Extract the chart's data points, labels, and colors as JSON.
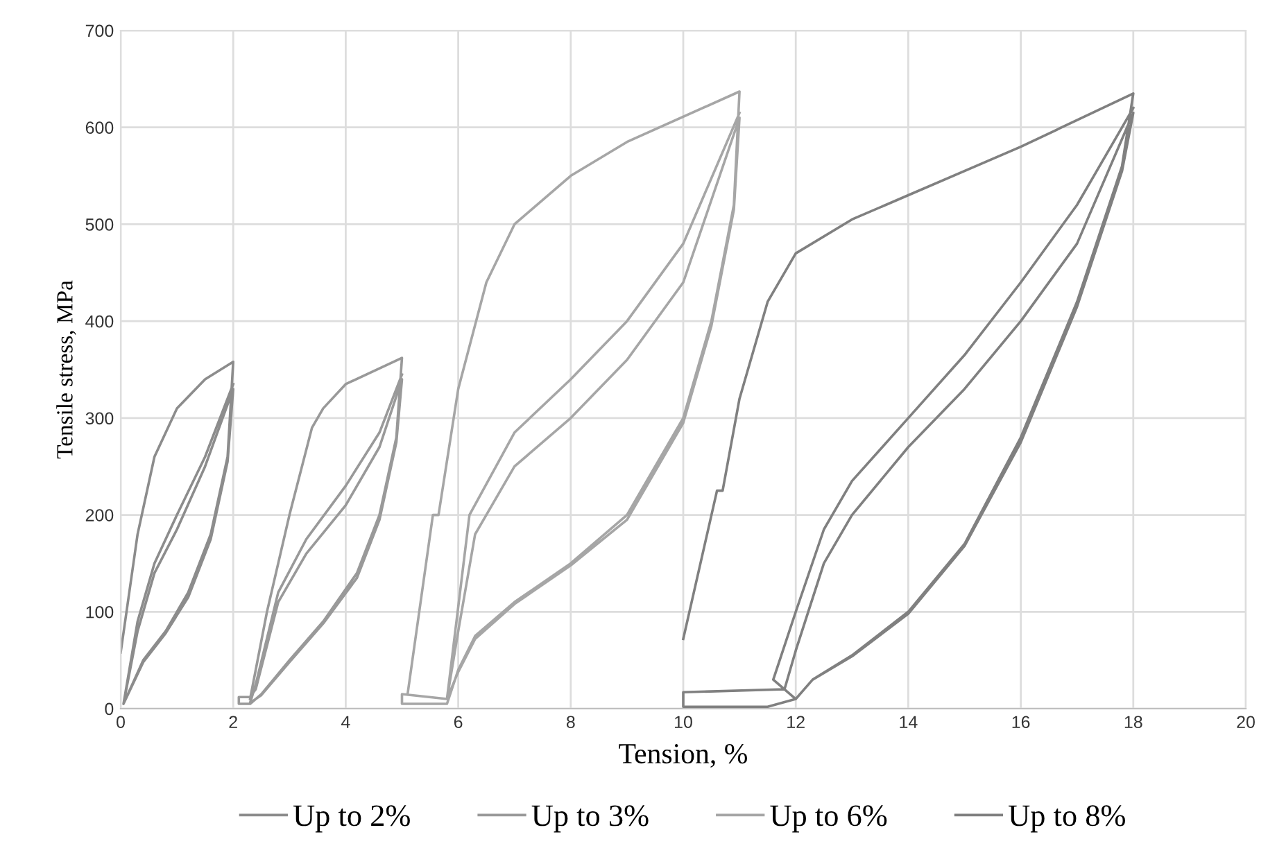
{
  "chart_data": {
    "type": "line",
    "xlabel": "Tension, %",
    "ylabel": "Tensile stress, MPa",
    "xlim": [
      0,
      20
    ],
    "ylim": [
      0,
      700
    ],
    "xticks": [
      0,
      2,
      4,
      6,
      8,
      10,
      12,
      14,
      16,
      18,
      20
    ],
    "yticks": [
      0,
      100,
      200,
      300,
      400,
      500,
      600,
      700
    ],
    "grid": true,
    "legend": "bottom",
    "marker": "none",
    "line_style": "solid",
    "series": [
      {
        "name": "Up to 2%",
        "color": "#8c8c8c",
        "x": [
          0,
          0.3,
          0.6,
          1,
          1.5,
          2,
          1.9,
          1.6,
          1.2,
          0.8,
          0.4,
          0.05,
          0.3,
          0.6,
          1.0,
          1.5,
          2,
          1.9,
          1.6,
          1.2,
          0.8,
          0.4,
          0.05,
          0.3,
          0.6,
          1.0,
          1.5,
          2
        ],
        "values": [
          58,
          180,
          260,
          310,
          340,
          358,
          260,
          180,
          120,
          80,
          50,
          5,
          80,
          140,
          185,
          250,
          330,
          255,
          175,
          115,
          78,
          48,
          5,
          90,
          150,
          200,
          260,
          335
        ]
      },
      {
        "name": "Up to 3%",
        "color": "#999999",
        "x": [
          2.3,
          2.6,
          3,
          3.4,
          3.6,
          4,
          5,
          4.9,
          4.6,
          4.2,
          3.6,
          3,
          2.5,
          2.3,
          2.1,
          2.1,
          2.3,
          2.4,
          2.8,
          3.3,
          4,
          4.6,
          5,
          4.9,
          4.6,
          4.2,
          3.6,
          3,
          2.5,
          2.3,
          2.4,
          2.8,
          3.3,
          4,
          4.6,
          5
        ],
        "values": [
          10,
          100,
          200,
          290,
          310,
          335,
          362,
          280,
          200,
          140,
          90,
          50,
          15,
          5,
          5,
          12,
          12,
          20,
          110,
          160,
          210,
          270,
          340,
          275,
          195,
          135,
          88,
          48,
          14,
          6,
          25,
          120,
          175,
          230,
          285,
          345
        ]
      },
      {
        "name": "Up to 6%",
        "color": "#a6a6a6",
        "x": [
          5.1,
          5.55,
          5.65,
          6,
          6.5,
          7,
          8,
          9,
          11,
          10.9,
          10.5,
          10,
          9,
          8,
          7,
          6.3,
          6,
          5.8,
          5,
          5,
          5.8,
          6,
          6.3,
          7,
          8,
          9,
          10,
          11,
          10.9,
          10.5,
          10,
          9,
          8,
          7,
          6.3,
          6,
          5.8,
          6.2,
          7,
          8,
          9,
          10,
          11
        ],
        "values": [
          15,
          200,
          200,
          330,
          440,
          500,
          550,
          585,
          637,
          520,
          400,
          300,
          200,
          150,
          110,
          75,
          40,
          5,
          5,
          15,
          10,
          80,
          180,
          250,
          300,
          360,
          440,
          610,
          515,
          395,
          295,
          195,
          148,
          108,
          72,
          38,
          10,
          200,
          285,
          340,
          400,
          480,
          615
        ]
      },
      {
        "name": "Up to 8%",
        "color": "#808080",
        "x": [
          10,
          10.6,
          10.7,
          11,
          11.5,
          12,
          13,
          14,
          16,
          18,
          17.8,
          17,
          16,
          15,
          14,
          13,
          12.3,
          12,
          11.5,
          10,
          10,
          11.8,
          12,
          12.5,
          13,
          14,
          15,
          16,
          17,
          18,
          17.8,
          17,
          16,
          15,
          14,
          13,
          12.3,
          12,
          11.6,
          12,
          12.5,
          13,
          14,
          15,
          16,
          17,
          18
        ],
        "values": [
          72,
          225,
          225,
          320,
          420,
          470,
          505,
          530,
          580,
          635,
          560,
          420,
          280,
          170,
          100,
          55,
          30,
          10,
          2,
          2,
          17,
          20,
          60,
          150,
          200,
          270,
          330,
          400,
          480,
          615,
          555,
          415,
          275,
          168,
          98,
          54,
          30,
          10,
          30,
          100,
          185,
          235,
          300,
          365,
          440,
          520,
          620
        ]
      }
    ]
  }
}
